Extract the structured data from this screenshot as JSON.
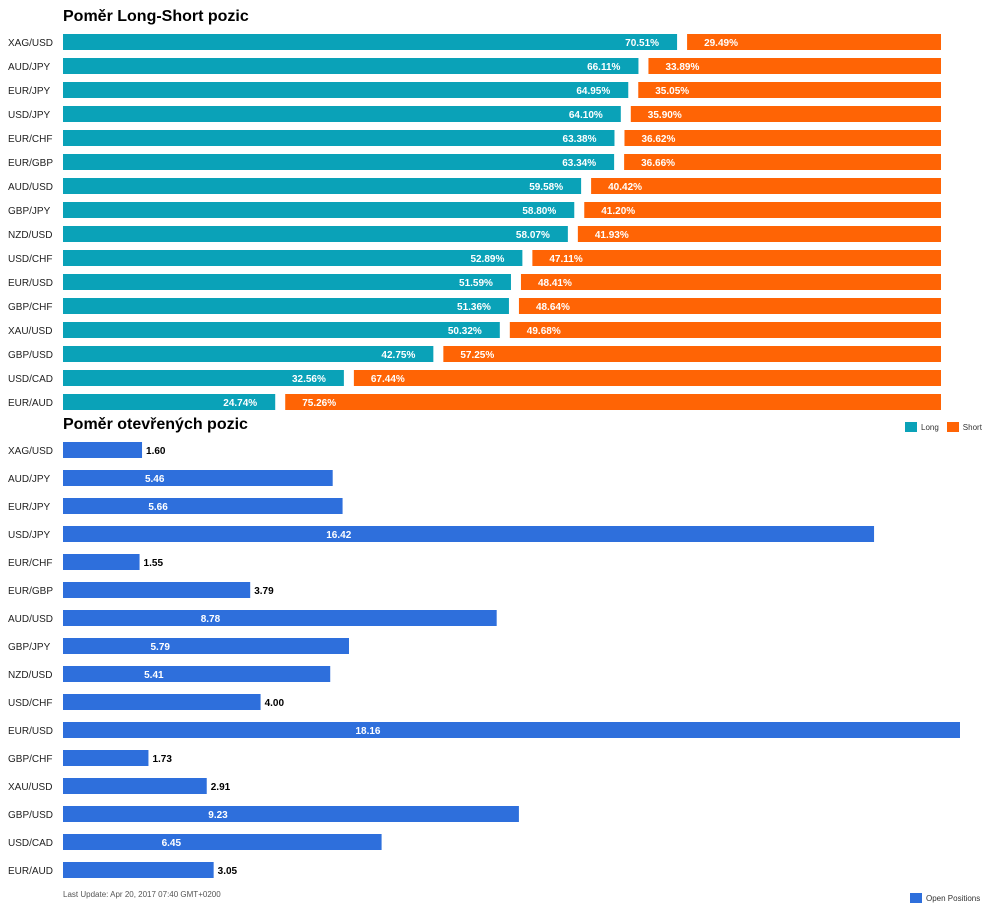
{
  "colors": {
    "long": "#0aa2b8",
    "short": "#ff6405",
    "open": "#2e6fdc"
  },
  "chart_data": [
    {
      "type": "bar",
      "orientation": "horizontal",
      "stacked": true,
      "title": "Poměr Long-Short pozic",
      "categories": [
        "XAG/USD",
        "AUD/JPY",
        "EUR/JPY",
        "USD/JPY",
        "EUR/CHF",
        "EUR/GBP",
        "AUD/USD",
        "GBP/JPY",
        "NZD/USD",
        "USD/CHF",
        "EUR/USD",
        "GBP/CHF",
        "XAU/USD",
        "GBP/USD",
        "USD/CAD",
        "EUR/AUD"
      ],
      "series": [
        {
          "name": "Long",
          "values": [
            70.51,
            66.11,
            64.95,
            64.1,
            63.38,
            63.34,
            59.58,
            58.8,
            58.07,
            52.89,
            51.59,
            51.36,
            50.32,
            42.75,
            32.56,
            24.74
          ]
        },
        {
          "name": "Short",
          "values": [
            29.49,
            33.89,
            35.05,
            35.9,
            36.62,
            36.66,
            40.42,
            41.2,
            41.93,
            47.11,
            48.41,
            48.64,
            49.68,
            57.25,
            67.44,
            75.26
          ]
        }
      ],
      "labels_long": [
        "70.51%",
        "66.11%",
        "64.95%",
        "64.10%",
        "63.38%",
        "63.34%",
        "59.58%",
        "58.80%",
        "58.07%",
        "52.89%",
        "51.59%",
        "51.36%",
        "50.32%",
        "42.75%",
        "32.56%",
        "24.74%"
      ],
      "labels_short": [
        "29.49%",
        "33.89%",
        "35.05%",
        "35.90%",
        "36.62%",
        "36.66%",
        "40.42%",
        "41.20%",
        "41.93%",
        "47.11%",
        "48.41%",
        "48.64%",
        "49.68%",
        "57.25%",
        "67.44%",
        "75.26%"
      ],
      "xlim": [
        0,
        100
      ],
      "legend": "top-right"
    },
    {
      "type": "bar",
      "orientation": "horizontal",
      "title": "Poměr otevřených pozic",
      "categories": [
        "XAG/USD",
        "AUD/JPY",
        "EUR/JPY",
        "USD/JPY",
        "EUR/CHF",
        "EUR/GBP",
        "AUD/USD",
        "GBP/JPY",
        "NZD/USD",
        "USD/CHF",
        "EUR/USD",
        "GBP/CHF",
        "XAU/USD",
        "GBP/USD",
        "USD/CAD",
        "EUR/AUD"
      ],
      "series": [
        {
          "name": "Open Positions",
          "values": [
            1.6,
            5.46,
            5.66,
            16.42,
            1.55,
            3.79,
            8.78,
            5.79,
            5.41,
            4.0,
            18.16,
            1.73,
            2.91,
            9.23,
            6.45,
            3.05
          ]
        }
      ],
      "labels": [
        "1.60",
        "5.46",
        "5.66",
        "16.42",
        "1.55",
        "3.79",
        "8.78",
        "5.79",
        "5.41",
        "4.00",
        "18.16",
        "1.73",
        "2.91",
        "9.23",
        "6.45",
        "3.05"
      ],
      "xlim": [
        0,
        18.16
      ],
      "legend": "bottom-right"
    }
  ],
  "footer": "Last Update: Apr 20, 2017 07:40 GMT+0200"
}
